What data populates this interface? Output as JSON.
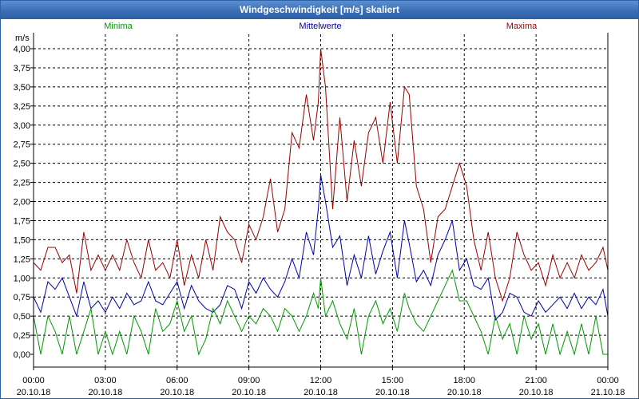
{
  "window": {
    "title": "Windgeschwindigkeit [m/s] skaliert"
  },
  "colors": {
    "min": "#009900",
    "mean": "#0000aa",
    "max": "#990000",
    "grid": "#000000",
    "titlebar": "#3a6fb6"
  },
  "chart_data": {
    "type": "line",
    "title": "Windgeschwindigkeit [m/s] skaliert",
    "ylabel": "m/s",
    "xlabel": "",
    "ylim": [
      0,
      4.0
    ],
    "xlim_hours": [
      0,
      24
    ],
    "grid": true,
    "yticks": [
      0,
      0.25,
      0.5,
      0.75,
      1.0,
      1.25,
      1.5,
      1.75,
      2.0,
      2.25,
      2.5,
      2.75,
      3.0,
      3.25,
      3.5,
      3.75,
      4.0
    ],
    "ytick_labels": [
      "0,00",
      "0,25",
      "0,50",
      "0,75",
      "1,00",
      "1,25",
      "1,50",
      "1,75",
      "2,00",
      "2,25",
      "2,50",
      "2,75",
      "3,00",
      "3,25",
      "3,50",
      "3,75",
      "4,00"
    ],
    "xticks": [
      {
        "h": 0,
        "time": "00:00",
        "date": "20.10.18"
      },
      {
        "h": 3,
        "time": "03:00",
        "date": "20.10.18"
      },
      {
        "h": 6,
        "time": "06:00",
        "date": "20.10.18"
      },
      {
        "h": 9,
        "time": "09:00",
        "date": "20.10.18"
      },
      {
        "h": 12,
        "time": "12:00",
        "date": "20.10.18"
      },
      {
        "h": 15,
        "time": "15:00",
        "date": "20.10.18"
      },
      {
        "h": 18,
        "time": "18:00",
        "date": "20.10.18"
      },
      {
        "h": 21,
        "time": "21:00",
        "date": "20.10.18"
      },
      {
        "h": 24,
        "time": "00:00",
        "date": "21.10.18"
      }
    ],
    "legend": [
      {
        "key": "min",
        "label": "Minima",
        "position": "top-left"
      },
      {
        "key": "mean",
        "label": "Mittelwerte",
        "position": "top-center"
      },
      {
        "key": "max",
        "label": "Maxima",
        "position": "top-right"
      }
    ],
    "series": [
      {
        "key": "max",
        "name": "Maxima",
        "x": [
          0,
          0.3,
          0.6,
          0.9,
          1.2,
          1.5,
          1.8,
          2.1,
          2.4,
          2.7,
          3.0,
          3.3,
          3.6,
          3.9,
          4.2,
          4.5,
          4.8,
          5.1,
          5.4,
          5.7,
          6.0,
          6.3,
          6.6,
          6.9,
          7.2,
          7.5,
          7.8,
          8.1,
          8.4,
          8.7,
          9.0,
          9.3,
          9.6,
          9.9,
          10.2,
          10.5,
          10.8,
          11.1,
          11.4,
          11.7,
          11.9,
          12.0,
          12.2,
          12.5,
          12.8,
          13.1,
          13.4,
          13.7,
          14.0,
          14.3,
          14.6,
          14.9,
          15.2,
          15.5,
          15.7,
          16.0,
          16.3,
          16.6,
          16.9,
          17.2,
          17.5,
          17.8,
          18.1,
          18.4,
          18.7,
          19.0,
          19.3,
          19.6,
          19.9,
          20.2,
          20.5,
          20.8,
          21.1,
          21.4,
          21.7,
          22.0,
          22.3,
          22.6,
          22.9,
          23.2,
          23.5,
          23.8,
          24.0
        ],
        "values": [
          1.2,
          1.1,
          1.4,
          1.4,
          1.2,
          1.3,
          0.8,
          1.6,
          1.1,
          1.3,
          1.1,
          1.3,
          1.1,
          1.5,
          1.2,
          1.0,
          1.5,
          1.1,
          1.2,
          1.0,
          1.5,
          0.9,
          1.3,
          1.0,
          1.5,
          1.1,
          1.8,
          1.6,
          1.5,
          1.2,
          1.7,
          1.5,
          1.8,
          2.3,
          1.6,
          1.9,
          2.9,
          2.7,
          3.4,
          2.8,
          3.3,
          4.0,
          3.5,
          1.9,
          3.1,
          2.0,
          2.8,
          2.2,
          2.9,
          3.1,
          2.5,
          3.3,
          2.5,
          3.5,
          3.4,
          2.2,
          1.9,
          1.2,
          1.8,
          1.9,
          2.2,
          2.5,
          2.2,
          1.5,
          1.1,
          1.6,
          1.0,
          0.7,
          1.0,
          1.6,
          1.3,
          1.1,
          1.2,
          0.9,
          1.3,
          1.0,
          1.2,
          1.0,
          1.3,
          1.1,
          1.2,
          1.4,
          1.1
        ]
      },
      {
        "key": "mean",
        "name": "Mittelwerte",
        "x": [
          0,
          0.3,
          0.6,
          0.9,
          1.2,
          1.5,
          1.8,
          2.1,
          2.4,
          2.7,
          3.0,
          3.3,
          3.6,
          3.9,
          4.2,
          4.5,
          4.8,
          5.1,
          5.4,
          5.7,
          6.0,
          6.3,
          6.6,
          6.9,
          7.2,
          7.5,
          7.8,
          8.1,
          8.4,
          8.7,
          9.0,
          9.3,
          9.6,
          9.9,
          10.2,
          10.5,
          10.8,
          11.1,
          11.4,
          11.7,
          11.9,
          12.0,
          12.2,
          12.5,
          12.8,
          13.1,
          13.4,
          13.7,
          14.0,
          14.3,
          14.6,
          14.9,
          15.2,
          15.5,
          15.7,
          16.0,
          16.3,
          16.6,
          16.9,
          17.2,
          17.5,
          17.8,
          18.1,
          18.4,
          18.7,
          19.0,
          19.3,
          19.6,
          19.9,
          20.2,
          20.5,
          20.8,
          21.1,
          21.4,
          21.7,
          22.0,
          22.3,
          22.6,
          22.9,
          23.2,
          23.5,
          23.8,
          24.0
        ],
        "values": [
          0.75,
          0.55,
          0.95,
          0.85,
          1.0,
          0.75,
          0.5,
          0.95,
          0.6,
          0.7,
          0.55,
          0.75,
          0.6,
          0.8,
          0.65,
          0.7,
          0.95,
          0.7,
          0.65,
          0.8,
          0.95,
          0.6,
          0.9,
          0.7,
          0.6,
          0.55,
          0.65,
          0.9,
          0.85,
          0.6,
          0.95,
          0.8,
          1.0,
          0.85,
          0.75,
          0.95,
          1.25,
          1.0,
          1.6,
          1.3,
          1.9,
          2.35,
          2.0,
          1.4,
          1.55,
          0.9,
          1.3,
          1.0,
          1.55,
          1.05,
          1.35,
          1.6,
          1.0,
          1.75,
          1.45,
          0.95,
          1.1,
          0.9,
          1.3,
          1.5,
          1.75,
          1.1,
          1.25,
          0.9,
          0.85,
          1.0,
          0.45,
          0.55,
          0.8,
          0.75,
          0.55,
          0.5,
          0.7,
          0.55,
          0.65,
          0.75,
          0.6,
          0.8,
          0.6,
          0.75,
          0.65,
          0.85,
          0.5
        ]
      },
      {
        "key": "min",
        "name": "Minima",
        "x": [
          0,
          0.3,
          0.6,
          0.9,
          1.2,
          1.5,
          1.8,
          2.1,
          2.4,
          2.7,
          3.0,
          3.3,
          3.6,
          3.9,
          4.2,
          4.5,
          4.8,
          5.1,
          5.4,
          5.7,
          6.0,
          6.3,
          6.6,
          6.9,
          7.2,
          7.5,
          7.8,
          8.1,
          8.4,
          8.7,
          9.0,
          9.3,
          9.6,
          9.9,
          10.2,
          10.5,
          10.8,
          11.1,
          11.4,
          11.7,
          11.9,
          12.0,
          12.2,
          12.5,
          12.8,
          13.1,
          13.4,
          13.7,
          14.0,
          14.3,
          14.6,
          14.9,
          15.2,
          15.5,
          15.7,
          16.0,
          16.3,
          16.6,
          16.9,
          17.2,
          17.5,
          17.8,
          18.1,
          18.4,
          18.7,
          19.0,
          19.3,
          19.6,
          19.9,
          20.2,
          20.5,
          20.8,
          21.1,
          21.4,
          21.7,
          22.0,
          22.3,
          22.6,
          22.9,
          23.2,
          23.5,
          23.8,
          24.0
        ],
        "values": [
          0.5,
          0.0,
          0.5,
          0.3,
          0.0,
          0.5,
          0.0,
          0.3,
          0.6,
          0.0,
          0.3,
          0.0,
          0.3,
          0.0,
          0.5,
          0.3,
          0.0,
          0.6,
          0.3,
          0.4,
          0.7,
          0.3,
          0.5,
          0.0,
          0.2,
          0.6,
          0.4,
          0.7,
          0.5,
          0.3,
          0.5,
          0.4,
          0.6,
          0.5,
          0.3,
          0.6,
          0.5,
          0.3,
          0.5,
          0.8,
          0.6,
          1.0,
          0.5,
          0.7,
          0.4,
          0.2,
          0.6,
          0.0,
          0.5,
          0.7,
          0.4,
          0.6,
          0.3,
          0.8,
          0.6,
          0.4,
          0.3,
          0.5,
          0.7,
          0.9,
          1.1,
          0.7,
          0.7,
          0.5,
          0.3,
          0.0,
          0.5,
          0.2,
          0.4,
          0.0,
          0.5,
          0.2,
          0.4,
          0.0,
          0.4,
          0.0,
          0.3,
          0.0,
          0.4,
          0.0,
          0.5,
          0.0,
          0.0
        ]
      }
    ]
  }
}
